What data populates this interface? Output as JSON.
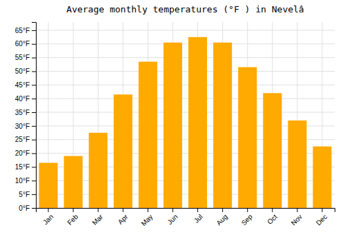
{
  "chart_data": {
    "type": "bar",
    "title": "Average monthly temperatures (°F ) in Nevelâ",
    "categories": [
      "Jan",
      "Feb",
      "Mar",
      "Apr",
      "May",
      "Jun",
      "Jul",
      "Aug",
      "Sep",
      "Oct",
      "Nov",
      "Dec"
    ],
    "values": [
      16.5,
      19.0,
      27.5,
      41.5,
      53.5,
      60.5,
      62.5,
      60.5,
      51.5,
      42.0,
      32.0,
      22.5
    ],
    "color": "#FFAA00",
    "ylim": [
      0,
      68
    ],
    "yticks": [
      {
        "value": 0,
        "label": "0°F"
      },
      {
        "value": 5,
        "label": "5°F"
      },
      {
        "value": 10,
        "label": "10°F"
      },
      {
        "value": 15,
        "label": "15°F"
      },
      {
        "value": 20,
        "label": "20°F"
      },
      {
        "value": 25,
        "label": "25°F"
      },
      {
        "value": 30,
        "label": "30°F"
      },
      {
        "value": 35,
        "label": "35°F"
      },
      {
        "value": 40,
        "label": "40°F"
      },
      {
        "value": 45,
        "label": "45°F"
      },
      {
        "value": 50,
        "label": "50°F"
      },
      {
        "value": 55,
        "label": "55°F"
      },
      {
        "value": 60,
        "label": "60°F"
      },
      {
        "value": 65,
        "label": "65°F"
      }
    ],
    "grid": true
  }
}
